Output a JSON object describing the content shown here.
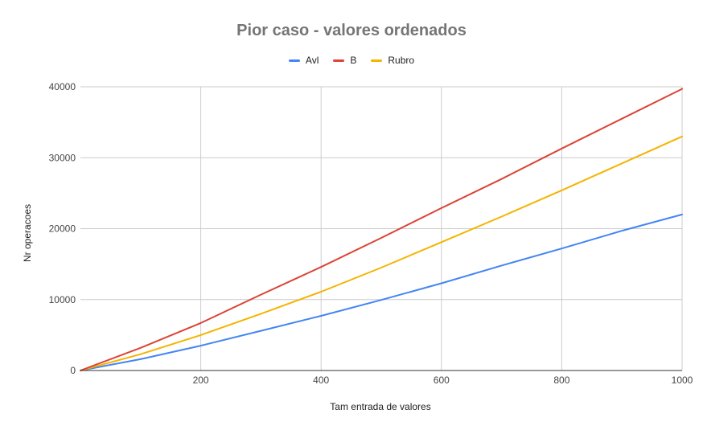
{
  "chart_data": {
    "type": "line",
    "title": "Pior caso - valores ordenados",
    "xlabel": "Tam entrada de valores",
    "ylabel": "Nr operacoes",
    "xlim": [
      0,
      1000
    ],
    "ylim": [
      0,
      40000
    ],
    "x_ticks": [
      200,
      400,
      600,
      800,
      1000
    ],
    "y_ticks": [
      0,
      10000,
      20000,
      30000,
      40000
    ],
    "grid": true,
    "legend_position": "top-center",
    "x": [
      0,
      100,
      200,
      300,
      400,
      500,
      600,
      700,
      800,
      900,
      1000
    ],
    "series": [
      {
        "name": "Avl",
        "color": "#4285F4",
        "values": [
          0,
          1600,
          3500,
          5600,
          7700,
          9950,
          12300,
          14800,
          17200,
          19700,
          22000
        ]
      },
      {
        "name": "B",
        "color": "#DB4437",
        "values": [
          0,
          3200,
          6700,
          10700,
          14600,
          18700,
          22900,
          27000,
          31300,
          35500,
          39700
        ]
      },
      {
        "name": "Rubro",
        "color": "#F4B400",
        "values": [
          0,
          2300,
          5000,
          8000,
          11100,
          14500,
          18100,
          21700,
          25400,
          29200,
          33000
        ]
      }
    ]
  }
}
